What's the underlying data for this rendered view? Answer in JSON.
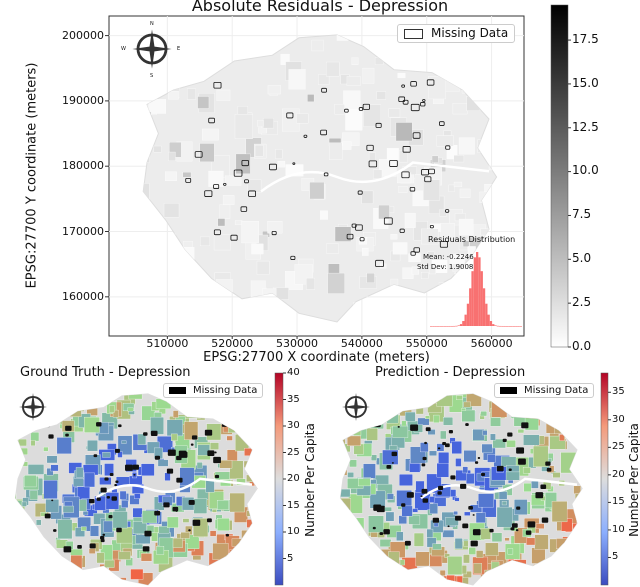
{
  "chart_data": [
    {
      "type": "heatmap",
      "title": "Absolute Residuals - Depression",
      "xlabel": "EPSG:27700 X coordinate (meters)",
      "ylabel": "EPSG:27700 Y coordinate (meters)",
      "xticks": [
        "510000",
        "520000",
        "530000",
        "540000",
        "550000",
        "560000"
      ],
      "yticks": [
        "160000",
        "170000",
        "180000",
        "190000",
        "200000"
      ],
      "xlim": [
        501000,
        565000
      ],
      "ylim": [
        154000,
        203000
      ],
      "legend": {
        "label": "Missing Data",
        "placement": "top-right"
      },
      "colorbar": {
        "colormap": "Greys",
        "range": [
          0,
          19.5
        ],
        "ticks": [
          "0.0",
          "2.5",
          "5.0",
          "7.5",
          "10.0",
          "12.5",
          "15.0",
          "17.5"
        ]
      },
      "compass": {
        "n": "N",
        "s": "S",
        "e": "E",
        "w": "W"
      },
      "inset": {
        "title": "Residuals Distribution",
        "mean": "Mean: -0.2246",
        "std": "Std Dev: 1.9008",
        "color": "#f87171"
      }
    },
    {
      "type": "heatmap",
      "title": "Ground Truth - Depression",
      "legend": {
        "label": "Missing Data",
        "placement": "top-right"
      },
      "colorbar": {
        "colormap": "coolwarm",
        "label": "Number Per Capita",
        "range": [
          0,
          40
        ],
        "ticks": [
          "5",
          "10",
          "15",
          "20",
          "25",
          "30",
          "35",
          "40"
        ]
      }
    },
    {
      "type": "heatmap",
      "title": "Prediction - Depression",
      "legend": {
        "label": "Missing Data",
        "placement": "top-right"
      },
      "colorbar": {
        "colormap": "coolwarm",
        "label": "Number Per Capita",
        "range": [
          0,
          38.5
        ],
        "ticks": [
          "5",
          "10",
          "15",
          "20",
          "25",
          "30",
          "35"
        ]
      }
    }
  ]
}
